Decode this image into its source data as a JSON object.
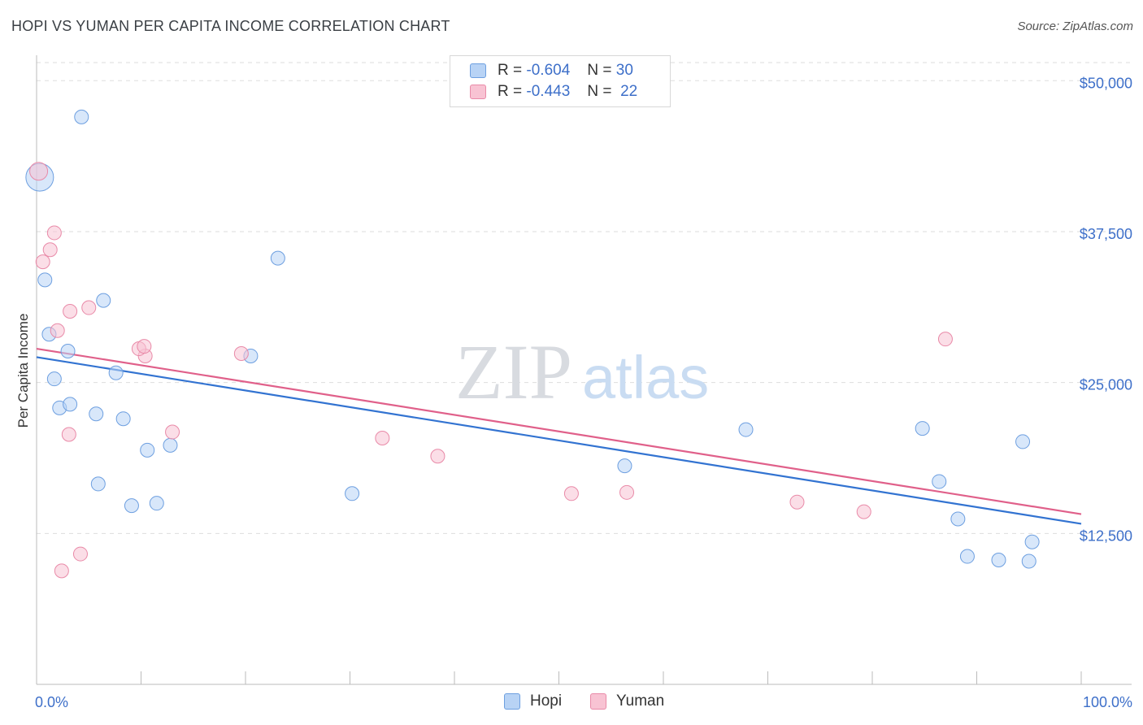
{
  "title": "HOPI VS YUMAN PER CAPITA INCOME CORRELATION CHART",
  "source": "Source: ZipAtlas.com",
  "watermark": {
    "zip": "ZIP",
    "atlas": "atlas"
  },
  "colors": {
    "hopi_fill": "#b8d3f5",
    "hopi_stroke": "#6d9fe0",
    "hopi_line": "#3273d1",
    "yuman_fill": "#f8c3d3",
    "yuman_stroke": "#e98aa8",
    "yuman_line": "#e0608a",
    "tick_text": "#3d6fc9",
    "grid": "#dddddd"
  },
  "legend": {
    "rows": [
      {
        "r_label": "R =",
        "r_value": "-0.604",
        "n_label": "N =",
        "n_value": "30"
      },
      {
        "r_label": "R =",
        "r_value": "-0.443",
        "n_label": "N =",
        "n_value": "22"
      }
    ]
  },
  "bottom_legend": {
    "hopi": "Hopi",
    "yuman": "Yuman"
  },
  "chart_data": {
    "type": "scatter",
    "title": "HOPI VS YUMAN PER CAPITA INCOME CORRELATION CHART",
    "xlabel": "",
    "ylabel": "Per Capita Income",
    "xlim": [
      0,
      100
    ],
    "ylim": [
      0,
      51500
    ],
    "x_tick_labels": [
      "0.0%",
      "100.0%"
    ],
    "y_ticks": [
      12500,
      25000,
      37500,
      50000
    ],
    "y_tick_labels": [
      "$12,500",
      "$25,000",
      "$37,500",
      "$50,000"
    ],
    "grid": true,
    "legend_position": "top-center",
    "series": [
      {
        "name": "Hopi",
        "points": [
          [
            0.3,
            42000
          ],
          [
            4.3,
            47000
          ],
          [
            0.8,
            33500
          ],
          [
            6.4,
            31800
          ],
          [
            1.2,
            29000
          ],
          [
            3.0,
            27600
          ],
          [
            1.7,
            25300
          ],
          [
            7.6,
            25800
          ],
          [
            2.2,
            22900
          ],
          [
            3.2,
            23200
          ],
          [
            5.7,
            22400
          ],
          [
            8.3,
            22000
          ],
          [
            10.6,
            19400
          ],
          [
            12.8,
            19800
          ],
          [
            5.9,
            16600
          ],
          [
            9.1,
            14800
          ],
          [
            11.5,
            15000
          ],
          [
            23.1,
            35300
          ],
          [
            20.5,
            27200
          ],
          [
            30.2,
            15800
          ],
          [
            56.3,
            18100
          ],
          [
            67.9,
            21100
          ],
          [
            84.8,
            21200
          ],
          [
            86.4,
            16800
          ],
          [
            88.2,
            13700
          ],
          [
            89.1,
            10600
          ],
          [
            92.1,
            10300
          ],
          [
            94.4,
            20100
          ],
          [
            95.0,
            10200
          ],
          [
            95.3,
            11800
          ]
        ],
        "trend": [
          [
            0,
            27100
          ],
          [
            100,
            13300
          ]
        ]
      },
      {
        "name": "Yuman",
        "points": [
          [
            0.2,
            42500
          ],
          [
            1.7,
            37400
          ],
          [
            1.3,
            36000
          ],
          [
            0.6,
            35000
          ],
          [
            5.0,
            31200
          ],
          [
            3.2,
            30900
          ],
          [
            2.0,
            29300
          ],
          [
            10.4,
            27200
          ],
          [
            9.8,
            27800
          ],
          [
            10.3,
            28000
          ],
          [
            19.6,
            27400
          ],
          [
            3.1,
            20700
          ],
          [
            13.0,
            20900
          ],
          [
            33.1,
            20400
          ],
          [
            38.4,
            18900
          ],
          [
            51.2,
            15800
          ],
          [
            56.5,
            15900
          ],
          [
            72.8,
            15100
          ],
          [
            79.2,
            14300
          ],
          [
            87.0,
            28600
          ],
          [
            4.2,
            10800
          ],
          [
            2.4,
            9400
          ]
        ],
        "trend": [
          [
            0,
            27800
          ],
          [
            100,
            14100
          ]
        ]
      }
    ]
  }
}
